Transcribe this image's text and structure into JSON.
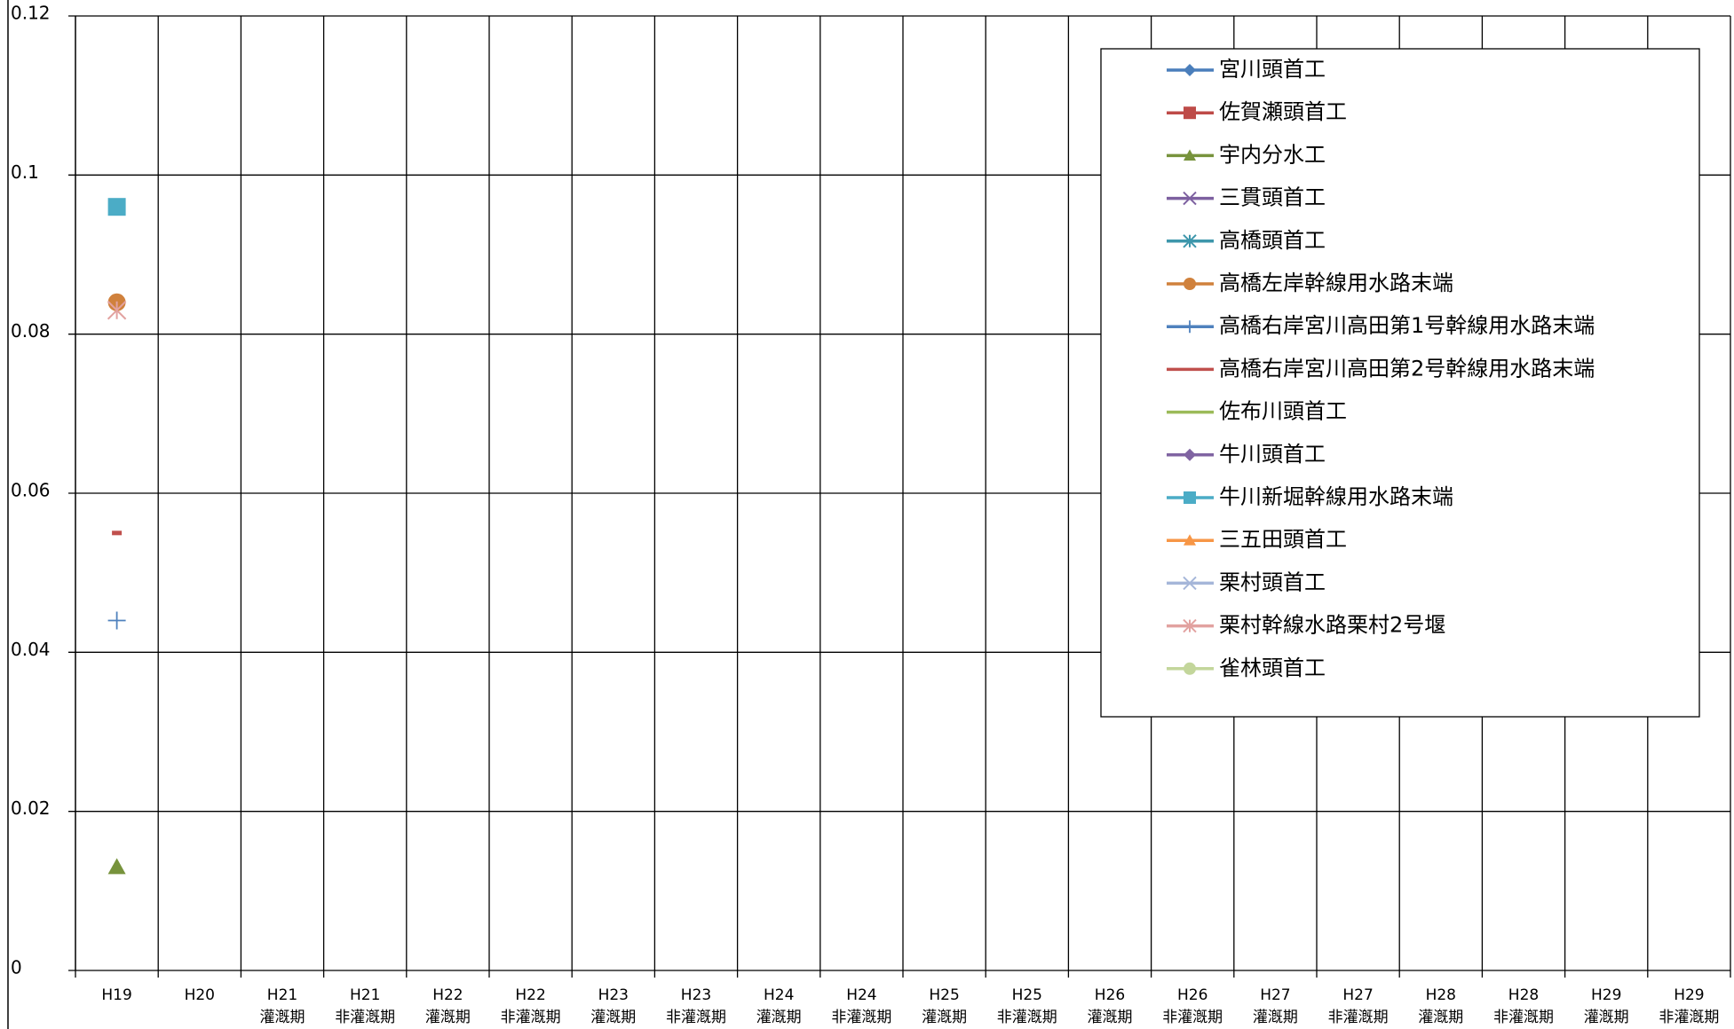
{
  "chart_data": {
    "type": "line",
    "categories": [
      "H19",
      "H20",
      "H21\n灌漑期",
      "H21\n非灌漑期",
      "H22\n灌漑期",
      "H22\n非灌漑期",
      "H23\n灌漑期",
      "H23\n非灌漑期",
      "H24\n灌漑期",
      "H24\n非灌漑期",
      "H25\n灌漑期",
      "H25\n非灌漑期",
      "H26\n灌漑期",
      "H26\n非灌漑期",
      "H27\n灌漑期",
      "H27\n非灌漑期",
      "H28\n灌漑期",
      "H28\n非灌漑期",
      "H29\n灌漑期",
      "H29\n非灌漑期"
    ],
    "ylim": [
      0,
      0.12
    ],
    "yticks": [
      0,
      0.02,
      0.04,
      0.06,
      0.08,
      0.1,
      0.12
    ],
    "grid": true,
    "legend": "top-right",
    "series": [
      {
        "name": "宮川頭首工",
        "color": "#4a7ebb",
        "marker": "diamond",
        "values": [
          null,
          null,
          null,
          null,
          null,
          null,
          null,
          null,
          null,
          null,
          null,
          null,
          null,
          null,
          null,
          null,
          null,
          null,
          null,
          null
        ]
      },
      {
        "name": "佐賀瀬頭首工",
        "color": "#be4b48",
        "marker": "square",
        "values": [
          null,
          null,
          null,
          null,
          null,
          null,
          null,
          null,
          null,
          null,
          null,
          null,
          null,
          null,
          null,
          null,
          null,
          null,
          null,
          null
        ]
      },
      {
        "name": "宇内分水工",
        "color": "#77933c",
        "marker": "triangle",
        "values": [
          0.013,
          null,
          null,
          null,
          null,
          null,
          null,
          null,
          null,
          null,
          null,
          null,
          null,
          null,
          null,
          null,
          null,
          null,
          null,
          null
        ]
      },
      {
        "name": "三貫頭首工",
        "color": "#7d60a0",
        "marker": "x",
        "values": [
          null,
          null,
          null,
          null,
          null,
          null,
          null,
          null,
          null,
          null,
          null,
          null,
          null,
          null,
          null,
          null,
          null,
          null,
          null,
          null
        ]
      },
      {
        "name": "高橋頭首工",
        "color": "#3d96ab",
        "marker": "asterisk",
        "values": [
          null,
          null,
          null,
          null,
          null,
          null,
          null,
          null,
          null,
          null,
          null,
          null,
          null,
          null,
          null,
          null,
          null,
          null,
          null,
          null
        ]
      },
      {
        "name": "高橋左岸幹線用水路末端",
        "color": "#d0813c",
        "marker": "circle",
        "values": [
          0.084,
          null,
          null,
          null,
          null,
          null,
          null,
          null,
          null,
          null,
          null,
          null,
          null,
          null,
          null,
          null,
          null,
          null,
          null,
          null
        ]
      },
      {
        "name": "高橋右岸宮川高田第1号幹線用水路末端",
        "color": "#4f81bd",
        "marker": "plus",
        "values": [
          0.044,
          null,
          null,
          null,
          null,
          null,
          null,
          null,
          null,
          null,
          null,
          null,
          null,
          null,
          null,
          null,
          null,
          null,
          null,
          null
        ]
      },
      {
        "name": "高橋右岸宮川高田第2号幹線用水路末端",
        "color": "#c0504d",
        "marker": "dash",
        "values": [
          0.055,
          null,
          null,
          null,
          null,
          null,
          null,
          null,
          null,
          null,
          null,
          null,
          null,
          null,
          null,
          null,
          null,
          null,
          null,
          null
        ]
      },
      {
        "name": "佐布川頭首工",
        "color": "#9bbb59",
        "marker": "none",
        "values": [
          null,
          null,
          null,
          null,
          null,
          null,
          null,
          null,
          null,
          null,
          null,
          null,
          null,
          null,
          null,
          null,
          null,
          null,
          null,
          null
        ]
      },
      {
        "name": "牛川頭首工",
        "color": "#8064a2",
        "marker": "diamond",
        "values": [
          null,
          null,
          null,
          null,
          null,
          null,
          null,
          null,
          null,
          null,
          null,
          null,
          null,
          null,
          null,
          null,
          null,
          null,
          null,
          null
        ]
      },
      {
        "name": "牛川新堀幹線用水路末端",
        "color": "#4bacc6",
        "marker": "square",
        "values": [
          0.096,
          null,
          null,
          null,
          null,
          null,
          null,
          null,
          null,
          null,
          null,
          null,
          null,
          null,
          null,
          null,
          null,
          null,
          null,
          null
        ]
      },
      {
        "name": "三五田頭首工",
        "color": "#f79646",
        "marker": "triangle",
        "values": [
          null,
          null,
          null,
          null,
          null,
          null,
          null,
          null,
          null,
          null,
          null,
          null,
          null,
          null,
          null,
          null,
          null,
          null,
          null,
          null
        ]
      },
      {
        "name": "栗村頭首工",
        "color": "#a5b6d9",
        "marker": "x",
        "values": [
          null,
          null,
          null,
          null,
          null,
          null,
          null,
          null,
          null,
          null,
          null,
          null,
          null,
          null,
          null,
          null,
          null,
          null,
          null,
          null
        ]
      },
      {
        "name": "栗村幹線水路栗村2号堰",
        "color": "#e2a2a0",
        "marker": "asterisk",
        "values": [
          0.083,
          null,
          null,
          null,
          null,
          null,
          null,
          null,
          null,
          null,
          null,
          null,
          null,
          null,
          null,
          null,
          null,
          null,
          null,
          null
        ]
      },
      {
        "name": "雀林頭首工",
        "color": "#c3d69b",
        "marker": "circle",
        "values": [
          null,
          null,
          null,
          null,
          null,
          null,
          null,
          null,
          null,
          null,
          null,
          null,
          null,
          null,
          null,
          null,
          null,
          null,
          null,
          null
        ]
      }
    ]
  }
}
